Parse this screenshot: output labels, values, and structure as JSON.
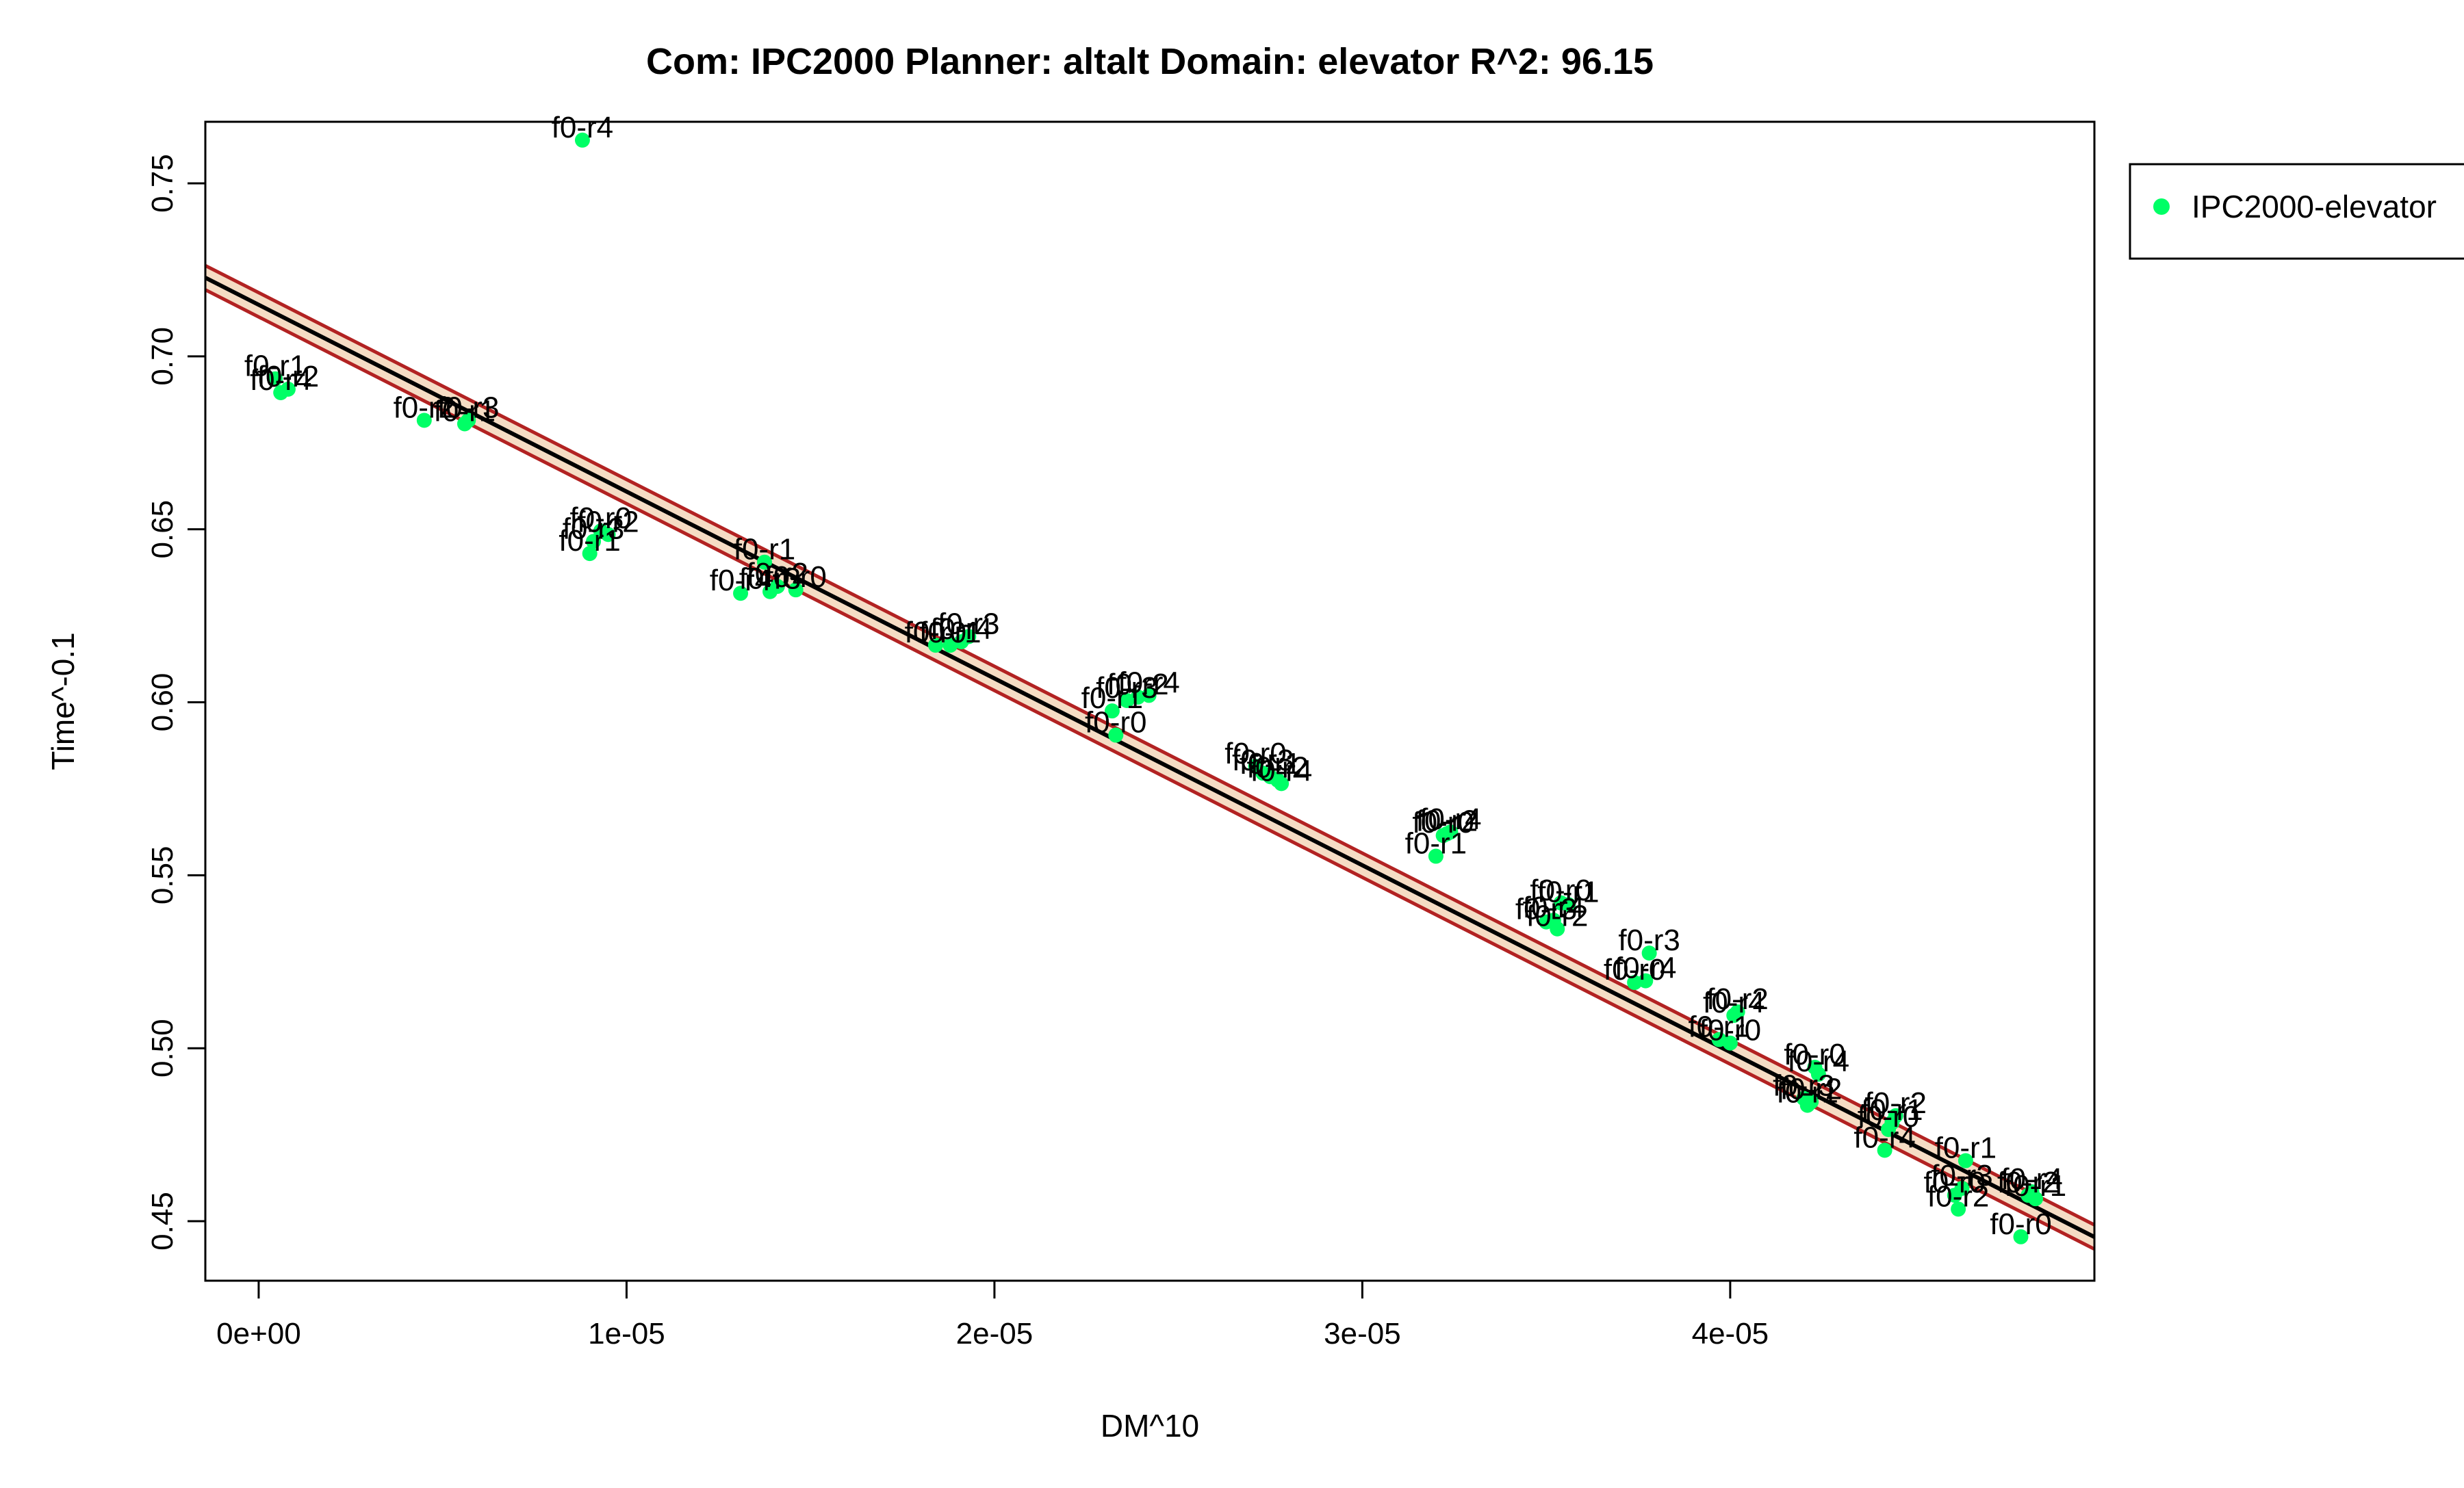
{
  "chart_data": {
    "type": "scatter",
    "title": "Com: IPC2000 Planner: altalt Domain: elevator R^2: 96.15",
    "xlabel": "DM^10",
    "ylabel": "Time^-0.1",
    "xlim": [
      -1.45e-06,
      4.99e-05
    ],
    "ylim": [
      0.4328,
      0.7678
    ],
    "x_ticks": [
      0,
      1e-05,
      2e-05,
      3e-05,
      4e-05
    ],
    "x_tick_labels": [
      "0e+00",
      "1e-05",
      "2e-05",
      "3e-05",
      "4e-05"
    ],
    "y_ticks": [
      0.45,
      0.5,
      0.55,
      0.6,
      0.65,
      0.7,
      0.75
    ],
    "y_tick_labels": [
      "0.45",
      "0.50",
      "0.55",
      "0.60",
      "0.65",
      "0.70",
      "0.75"
    ],
    "grid": false,
    "legend_position": "top-right, outside plot",
    "series": [
      {
        "name": "IPC2000-elevator",
        "color": "#00ff66",
        "points": [
          {
            "x": 4.5e-07,
            "y": 0.6935,
            "label": "f0-r1"
          },
          {
            "x": 6e-07,
            "y": 0.6895,
            "label": "f0-r4"
          },
          {
            "x": 8e-07,
            "y": 0.6905,
            "label": "f0-r2"
          },
          {
            "x": 4.5e-06,
            "y": 0.6815,
            "label": "f0-r2"
          },
          {
            "x": 5.6e-06,
            "y": 0.6805,
            "label": "f0-r1"
          },
          {
            "x": 5.7e-06,
            "y": 0.6815,
            "label": "f0-r3"
          },
          {
            "x": 8.8e-06,
            "y": 0.7625,
            "label": "f0-r4"
          },
          {
            "x": 9e-06,
            "y": 0.643,
            "label": "f0-r1"
          },
          {
            "x": 9.1e-06,
            "y": 0.6465,
            "label": "f0-r3"
          },
          {
            "x": 9.3e-06,
            "y": 0.6495,
            "label": "f0-r0"
          },
          {
            "x": 9.5e-06,
            "y": 0.6485,
            "label": "f0-r2"
          },
          {
            "x": 1.31e-05,
            "y": 0.6315,
            "label": "f0-r4"
          },
          {
            "x": 1.375e-05,
            "y": 0.6405,
            "label": "f0-r1"
          },
          {
            "x": 1.39e-05,
            "y": 0.632,
            "label": "f0-r3"
          },
          {
            "x": 1.41e-05,
            "y": 0.6335,
            "label": "f0-r2"
          },
          {
            "x": 1.46e-05,
            "y": 0.6325,
            "label": "f0-r0"
          },
          {
            "x": 1.84e-05,
            "y": 0.6165,
            "label": "f0-r0"
          },
          {
            "x": 1.88e-05,
            "y": 0.6165,
            "label": "f0-r1"
          },
          {
            "x": 1.91e-05,
            "y": 0.6175,
            "label": "f0-r4"
          },
          {
            "x": 1.93e-05,
            "y": 0.619,
            "label": "f0-r3"
          },
          {
            "x": 2.32e-05,
            "y": 0.5975,
            "label": "f0-r1"
          },
          {
            "x": 2.33e-05,
            "y": 0.5905,
            "label": "f0-r0"
          },
          {
            "x": 2.36e-05,
            "y": 0.6005,
            "label": "f0-r3"
          },
          {
            "x": 2.39e-05,
            "y": 0.6015,
            "label": "f0-r2"
          },
          {
            "x": 2.42e-05,
            "y": 0.602,
            "label": "f0-r4"
          },
          {
            "x": 2.71e-05,
            "y": 0.5815,
            "label": "f0-r0"
          },
          {
            "x": 2.73e-05,
            "y": 0.5795,
            "label": "f0-r3"
          },
          {
            "x": 2.75e-05,
            "y": 0.5785,
            "label": "f0-r1"
          },
          {
            "x": 2.77e-05,
            "y": 0.5775,
            "label": "f0-r2"
          },
          {
            "x": 2.78e-05,
            "y": 0.5765,
            "label": "f0-r4"
          },
          {
            "x": 3.2e-05,
            "y": 0.5555,
            "label": "f0-r1"
          },
          {
            "x": 3.22e-05,
            "y": 0.5615,
            "label": "f0-r0"
          },
          {
            "x": 3.23e-05,
            "y": 0.562,
            "label": "f0-r2"
          },
          {
            "x": 3.24e-05,
            "y": 0.5625,
            "label": "f0-r4"
          },
          {
            "x": 3.5e-05,
            "y": 0.5365,
            "label": "f0-r3"
          },
          {
            "x": 3.52e-05,
            "y": 0.537,
            "label": "f0-r4"
          },
          {
            "x": 3.53e-05,
            "y": 0.5345,
            "label": "f0-r2"
          },
          {
            "x": 3.54e-05,
            "y": 0.542,
            "label": "f0-r0"
          },
          {
            "x": 3.56e-05,
            "y": 0.5415,
            "label": "f0-r1"
          },
          {
            "x": 3.74e-05,
            "y": 0.519,
            "label": "f0-r0"
          },
          {
            "x": 3.77e-05,
            "y": 0.5195,
            "label": "f0-r4"
          },
          {
            "x": 3.78e-05,
            "y": 0.5275,
            "label": "f0-r3"
          },
          {
            "x": 3.97e-05,
            "y": 0.5025,
            "label": "f0-r1"
          },
          {
            "x": 4e-05,
            "y": 0.5015,
            "label": "f0-r0"
          },
          {
            "x": 4.01e-05,
            "y": 0.5095,
            "label": "f0-r4"
          },
          {
            "x": 4.02e-05,
            "y": 0.5105,
            "label": "f0-r2"
          },
          {
            "x": 4.2e-05,
            "y": 0.4855,
            "label": "f0-r3"
          },
          {
            "x": 4.21e-05,
            "y": 0.4835,
            "label": "f0-r1"
          },
          {
            "x": 4.22e-05,
            "y": 0.4845,
            "label": "f0-r2"
          },
          {
            "x": 4.23e-05,
            "y": 0.4945,
            "label": "f0-r0"
          },
          {
            "x": 4.24e-05,
            "y": 0.4925,
            "label": "f0-r4"
          },
          {
            "x": 4.42e-05,
            "y": 0.4705,
            "label": "f0-r4"
          },
          {
            "x": 4.43e-05,
            "y": 0.4765,
            "label": "f0-r0"
          },
          {
            "x": 4.44e-05,
            "y": 0.4785,
            "label": "f0-r1"
          },
          {
            "x": 4.45e-05,
            "y": 0.4805,
            "label": "f0-r2"
          },
          {
            "x": 4.61e-05,
            "y": 0.4575,
            "label": "f0-r0"
          },
          {
            "x": 4.62e-05,
            "y": 0.4535,
            "label": "f0-r2"
          },
          {
            "x": 4.63e-05,
            "y": 0.4595,
            "label": "f0-r3"
          },
          {
            "x": 4.64e-05,
            "y": 0.4675,
            "label": "f0-r1"
          },
          {
            "x": 4.79e-05,
            "y": 0.4455,
            "label": "f0-r0"
          },
          {
            "x": 4.81e-05,
            "y": 0.4575,
            "label": "f0-r2"
          },
          {
            "x": 4.82e-05,
            "y": 0.4585,
            "label": "f0-r4"
          },
          {
            "x": 4.83e-05,
            "y": 0.4565,
            "label": "f0-r1"
          }
        ]
      }
    ],
    "regression": {
      "intercept": 0.7149,
      "slope": -5400.0,
      "band_halfwidth": 0.0035,
      "line_color": "#000000",
      "band_fill": "#f5dcc4",
      "band_border": "#b22222"
    }
  }
}
